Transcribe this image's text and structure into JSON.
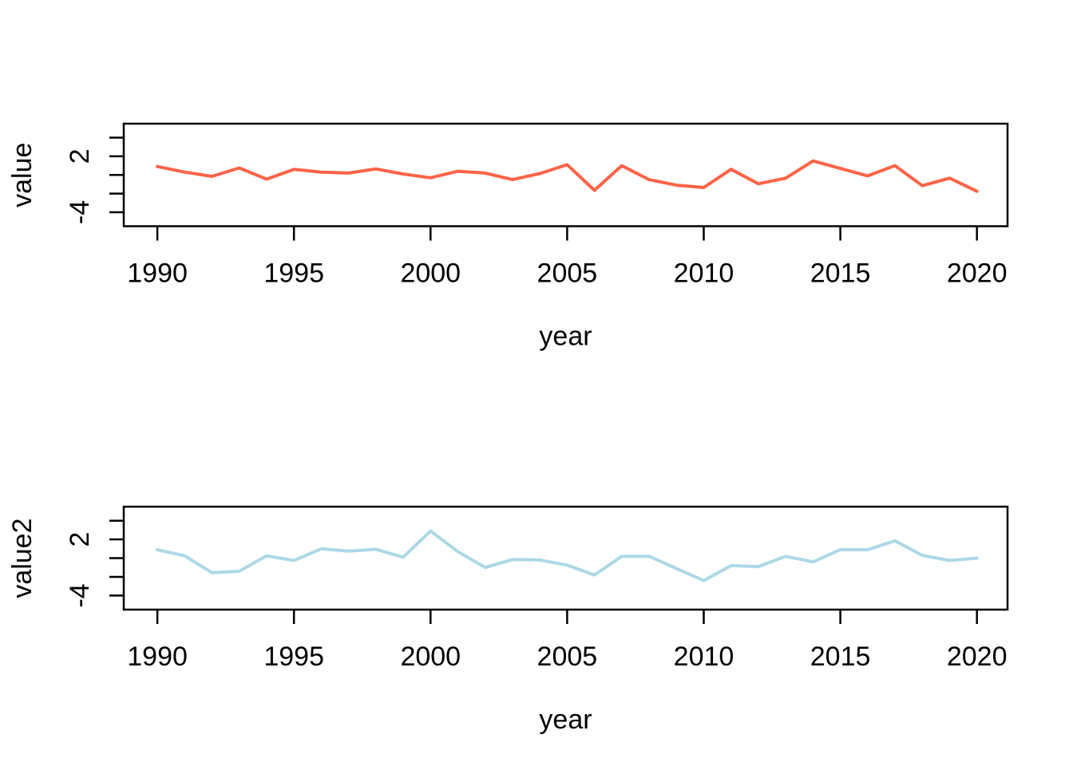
{
  "page": {
    "background_color": "#ffffff",
    "description": "Two stacked base-R style line plots"
  },
  "chart_data": [
    {
      "type": "line",
      "title": "",
      "xlabel": "year",
      "ylabel": "value",
      "series": [
        {
          "name": "value",
          "color": "#FF6347",
          "x": [
            1990,
            1991,
            1992,
            1993,
            1994,
            1995,
            1996,
            1997,
            1998,
            1999,
            2000,
            2001,
            2002,
            2003,
            2004,
            2005,
            2006,
            2007,
            2008,
            2009,
            2010,
            2011,
            2012,
            2013,
            2014,
            2015,
            2016,
            2017,
            2018,
            2019,
            2020
          ],
          "y": [
            0.9,
            0.3,
            -0.15,
            0.75,
            -0.45,
            0.6,
            0.3,
            0.2,
            0.65,
            0.1,
            -0.3,
            0.4,
            0.2,
            -0.5,
            0.15,
            1.1,
            -1.65,
            1.0,
            -0.5,
            -1.1,
            -1.35,
            0.6,
            -0.95,
            -0.35,
            1.5,
            0.7,
            -0.1,
            1.0,
            -1.15,
            -0.35,
            -1.75
          ]
        }
      ],
      "xlim": [
        1988.77,
        2021.12
      ],
      "ylim": [
        -5.5,
        5.5
      ],
      "x_ticks": [
        1990,
        1995,
        2000,
        2005,
        2010,
        2015,
        2020
      ],
      "y_ticks": [
        4,
        2,
        0,
        -2,
        -4
      ],
      "y_labeled_ticks": [
        2,
        -4
      ],
      "grid": false,
      "legend_position": "none",
      "axis_color": "#000000"
    },
    {
      "type": "line",
      "title": "",
      "xlabel": "year",
      "ylabel": "value2",
      "series": [
        {
          "name": "value2",
          "color": "#ADD8E6",
          "x": [
            1990,
            1991,
            1992,
            1993,
            1994,
            1995,
            1996,
            1997,
            1998,
            1999,
            2000,
            2001,
            2002,
            2003,
            2004,
            2005,
            2006,
            2007,
            2008,
            2009,
            2010,
            2011,
            2012,
            2013,
            2014,
            2015,
            2016,
            2017,
            2018,
            2019,
            2020
          ],
          "y": [
            0.9,
            0.25,
            -1.55,
            -1.4,
            0.25,
            -0.25,
            1.0,
            0.75,
            0.95,
            0.1,
            2.9,
            0.7,
            -1.0,
            -0.15,
            -0.2,
            -0.75,
            -1.8,
            0.2,
            0.2,
            -1.1,
            -2.4,
            -0.8,
            -0.9,
            0.2,
            -0.4,
            0.9,
            0.9,
            1.85,
            0.3,
            -0.25,
            0.0
          ]
        }
      ],
      "xlim": [
        1988.77,
        2021.12
      ],
      "ylim": [
        -5.5,
        5.5
      ],
      "x_ticks": [
        1990,
        1995,
        2000,
        2005,
        2010,
        2015,
        2020
      ],
      "y_ticks": [
        4,
        2,
        0,
        -2,
        -4
      ],
      "y_labeled_ticks": [
        2,
        -4
      ],
      "grid": false,
      "legend_position": "none",
      "axis_color": "#000000"
    }
  ]
}
